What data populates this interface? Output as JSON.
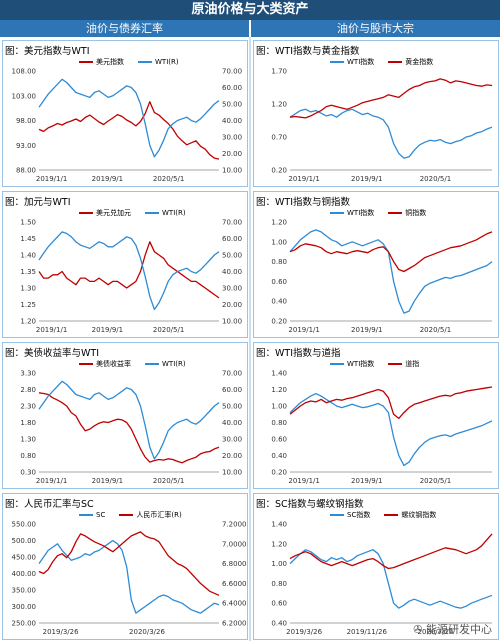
{
  "header": {
    "title": "原油价格与大类资产",
    "left_column": "油价与债券汇率",
    "right_column": "油价与股市大宗"
  },
  "watermark": "能源研发中心",
  "colors": {
    "red": "#c00000",
    "blue": "#2e8bd6"
  },
  "chart_data": [
    {
      "type": "line",
      "title": "图：美元指数与WTI",
      "x_ticks": [
        "2019/1/1",
        "2019/9/1",
        "2020/5/1"
      ],
      "left_axis": {
        "ticks": [
          "108.00",
          "103.00",
          "98.00",
          "93.00",
          "88.00"
        ],
        "range": [
          88,
          108
        ]
      },
      "right_axis": {
        "ticks": [
          "70.00",
          "60.00",
          "50.00",
          "40.00",
          "30.00",
          "20.00",
          "10.00"
        ],
        "range": [
          10,
          70
        ]
      },
      "series": [
        {
          "name": "美元指数",
          "axis": "left",
          "color": "#c00000",
          "values": [
            96.2,
            95.8,
            96.5,
            96.9,
            97.4,
            97.1,
            97.6,
            97.9,
            98.3,
            97.8,
            98.6,
            99.1,
            98.4,
            97.7,
            97.2,
            97.9,
            98.5,
            99.2,
            98.8,
            98.1,
            97.6,
            96.9,
            97.8,
            99.4,
            101.8,
            99.6,
            99.1,
            98.2,
            97.4,
            96.3,
            94.8,
            93.9,
            93.1,
            93.5,
            93.9,
            92.8,
            92.2,
            91.1,
            90.4,
            90.2
          ]
        },
        {
          "name": "WTI(R)",
          "axis": "right",
          "color": "#2e8bd6",
          "values": [
            48,
            52,
            56,
            59,
            62,
            65,
            63,
            60,
            57,
            56,
            55,
            54,
            57,
            58,
            56,
            54,
            55,
            57,
            59,
            61,
            60,
            57,
            50,
            38,
            25,
            18,
            22,
            28,
            35,
            38,
            40,
            41,
            42,
            40,
            39,
            41,
            44,
            47,
            50,
            52
          ]
        }
      ]
    },
    {
      "type": "line",
      "title": "图：加元与WTI",
      "x_ticks": [
        "2019/1/1",
        "2019/9/1",
        "2020/5/1"
      ],
      "left_axis": {
        "ticks": [
          "1.50",
          "1.45",
          "1.40",
          "1.35",
          "1.30",
          "1.25",
          "1.20"
        ],
        "range": [
          1.2,
          1.5
        ]
      },
      "right_axis": {
        "ticks": [
          "70.00",
          "60.00",
          "50.00",
          "40.00",
          "30.00",
          "20.00",
          "10.00"
        ],
        "range": [
          10,
          70
        ]
      },
      "series": [
        {
          "name": "美元兑加元",
          "axis": "left",
          "color": "#c00000",
          "values": [
            1.35,
            1.33,
            1.33,
            1.34,
            1.34,
            1.35,
            1.33,
            1.32,
            1.31,
            1.33,
            1.33,
            1.32,
            1.32,
            1.33,
            1.32,
            1.31,
            1.32,
            1.32,
            1.31,
            1.3,
            1.31,
            1.32,
            1.35,
            1.4,
            1.44,
            1.41,
            1.4,
            1.39,
            1.37,
            1.36,
            1.35,
            1.34,
            1.33,
            1.32,
            1.32,
            1.31,
            1.3,
            1.29,
            1.28,
            1.27
          ]
        },
        {
          "name": "WTI(R)",
          "axis": "right",
          "color": "#2e8bd6",
          "values": [
            47,
            51,
            55,
            58,
            61,
            64,
            63,
            61,
            58,
            56,
            55,
            54,
            56,
            58,
            57,
            55,
            55,
            57,
            59,
            61,
            60,
            56,
            48,
            37,
            25,
            17,
            21,
            27,
            34,
            38,
            40,
            41,
            42,
            40,
            39,
            41,
            44,
            47,
            50,
            52
          ]
        }
      ]
    },
    {
      "type": "line",
      "title": "图：美债收益率与WTI",
      "x_ticks": [
        "2019/1/1",
        "2019/9/1",
        "2020/5/1"
      ],
      "left_axis": {
        "ticks": [
          "3.30",
          "2.80",
          "2.30",
          "1.80",
          "1.30",
          "0.80",
          "0.30"
        ],
        "range": [
          0.3,
          3.3
        ]
      },
      "right_axis": {
        "ticks": [
          "70.00",
          "60.00",
          "50.00",
          "40.00",
          "30.00",
          "20.00",
          "10.00"
        ],
        "range": [
          10,
          70
        ]
      },
      "series": [
        {
          "name": "美债收益率",
          "axis": "left",
          "color": "#c00000",
          "values": [
            2.7,
            2.68,
            2.65,
            2.55,
            2.48,
            2.4,
            2.3,
            2.1,
            2.0,
            1.75,
            1.55,
            1.6,
            1.7,
            1.78,
            1.82,
            1.8,
            1.85,
            1.9,
            1.88,
            1.8,
            1.6,
            1.3,
            1.0,
            0.75,
            0.6,
            0.65,
            0.68,
            0.66,
            0.7,
            0.68,
            0.62,
            0.58,
            0.65,
            0.7,
            0.75,
            0.85,
            0.9,
            0.92,
            1.0,
            1.05
          ]
        },
        {
          "name": "WTI(R)",
          "axis": "right",
          "color": "#2e8bd6",
          "values": [
            48,
            52,
            56,
            59,
            62,
            65,
            63,
            60,
            57,
            56,
            55,
            54,
            57,
            58,
            56,
            54,
            55,
            57,
            59,
            61,
            60,
            57,
            50,
            38,
            25,
            18,
            22,
            28,
            35,
            38,
            40,
            41,
            42,
            40,
            39,
            41,
            44,
            47,
            50,
            52
          ]
        }
      ]
    },
    {
      "type": "line",
      "title": "图：人民币汇率与SC",
      "x_ticks": [
        "2019/3/26",
        "2020/3/26"
      ],
      "left_axis": {
        "ticks": [
          "550.00",
          "500.00",
          "450.00",
          "400.00",
          "350.00",
          "300.00",
          "250.00"
        ],
        "range": [
          250,
          550
        ]
      },
      "right_axis": {
        "ticks": [
          "7.2000",
          "7.0000",
          "6.8000",
          "6.6000",
          "6.4000",
          "6.2000"
        ],
        "range": [
          6.2,
          7.2
        ]
      },
      "series": [
        {
          "name": "SC",
          "axis": "left",
          "color": "#2e8bd6",
          "values": [
            430,
            450,
            470,
            480,
            490,
            470,
            455,
            440,
            445,
            450,
            460,
            455,
            465,
            470,
            480,
            490,
            500,
            490,
            470,
            420,
            320,
            280,
            290,
            300,
            310,
            320,
            330,
            335,
            330,
            320,
            315,
            310,
            300,
            290,
            285,
            280,
            290,
            300,
            310,
            305
          ]
        },
        {
          "name": "人民币汇率(R)",
          "axis": "right",
          "color": "#c00000",
          "values": [
            6.72,
            6.7,
            6.74,
            6.82,
            6.88,
            6.9,
            6.86,
            6.92,
            7.02,
            7.1,
            7.08,
            7.05,
            7.02,
            7.0,
            6.98,
            6.95,
            6.92,
            6.96,
            7.0,
            7.04,
            7.08,
            7.1,
            7.12,
            7.08,
            7.06,
            7.05,
            7.02,
            6.95,
            6.88,
            6.84,
            6.8,
            6.78,
            6.75,
            6.7,
            6.65,
            6.6,
            6.56,
            6.52,
            6.5,
            6.48
          ]
        }
      ]
    },
    {
      "type": "line",
      "title": "图：WTI指数与黄金指数",
      "x_ticks": [
        "2019/1/1",
        "2019/9/1",
        "2020/5/1"
      ],
      "left_axis": {
        "ticks": [
          "1.70",
          "1.20",
          "0.70",
          "0.20"
        ],
        "range": [
          0.2,
          1.7
        ]
      },
      "series": [
        {
          "name": "WTI指数",
          "axis": "left",
          "color": "#2e8bd6",
          "values": [
            1.0,
            1.05,
            1.1,
            1.12,
            1.08,
            1.1,
            1.06,
            1.02,
            1.04,
            1.0,
            1.06,
            1.1,
            1.12,
            1.08,
            1.04,
            1.06,
            1.02,
            1.0,
            0.96,
            0.85,
            0.6,
            0.45,
            0.38,
            0.4,
            0.5,
            0.58,
            0.62,
            0.65,
            0.64,
            0.66,
            0.62,
            0.6,
            0.63,
            0.65,
            0.7,
            0.72,
            0.76,
            0.78,
            0.82,
            0.85
          ]
        },
        {
          "name": "黄金指数",
          "axis": "left",
          "color": "#c00000",
          "values": [
            1.0,
            1.01,
            1.0,
            0.99,
            1.02,
            1.06,
            1.1,
            1.16,
            1.18,
            1.16,
            1.14,
            1.12,
            1.15,
            1.18,
            1.22,
            1.24,
            1.26,
            1.28,
            1.3,
            1.34,
            1.32,
            1.3,
            1.36,
            1.42,
            1.46,
            1.48,
            1.52,
            1.54,
            1.55,
            1.58,
            1.56,
            1.52,
            1.55,
            1.54,
            1.52,
            1.5,
            1.48,
            1.47,
            1.49,
            1.48
          ]
        }
      ]
    },
    {
      "type": "line",
      "title": "图：WTI指数与铜指数",
      "x_ticks": [
        "2019/1/1",
        "2019/9/1",
        "2020/5/1"
      ],
      "left_axis": {
        "ticks": [
          "1.20",
          "1.00",
          "0.80",
          "0.60",
          "0.40",
          "0.20"
        ],
        "range": [
          0.2,
          1.2
        ]
      },
      "series": [
        {
          "name": "WTI指数",
          "axis": "left",
          "color": "#2e8bd6",
          "values": [
            0.9,
            0.96,
            1.02,
            1.06,
            1.1,
            1.12,
            1.1,
            1.06,
            1.02,
            1.0,
            0.96,
            0.98,
            1.0,
            0.98,
            0.96,
            0.98,
            1.0,
            1.02,
            0.98,
            0.9,
            0.6,
            0.4,
            0.28,
            0.3,
            0.4,
            0.48,
            0.55,
            0.58,
            0.6,
            0.62,
            0.64,
            0.63,
            0.65,
            0.66,
            0.68,
            0.7,
            0.72,
            0.74,
            0.76,
            0.8
          ]
        },
        {
          "name": "铜指数",
          "axis": "left",
          "color": "#c00000",
          "values": [
            0.9,
            0.92,
            0.96,
            0.98,
            0.97,
            0.96,
            0.94,
            0.9,
            0.88,
            0.9,
            0.89,
            0.88,
            0.9,
            0.91,
            0.9,
            0.89,
            0.92,
            0.94,
            0.95,
            0.9,
            0.8,
            0.72,
            0.7,
            0.73,
            0.76,
            0.8,
            0.84,
            0.86,
            0.88,
            0.9,
            0.92,
            0.94,
            0.95,
            0.96,
            0.98,
            1.0,
            1.02,
            1.05,
            1.08,
            1.1
          ]
        }
      ]
    },
    {
      "type": "line",
      "title": "图：WTI指数与道指",
      "x_ticks": [
        "2019/1/1",
        "2019/9/1",
        "2020/5/1"
      ],
      "left_axis": {
        "ticks": [
          "1.40",
          "1.20",
          "1.00",
          "0.80",
          "0.60",
          "0.40",
          "0.20"
        ],
        "range": [
          0.2,
          1.4
        ]
      },
      "series": [
        {
          "name": "WTI指数",
          "axis": "left",
          "color": "#2e8bd6",
          "values": [
            0.92,
            0.98,
            1.04,
            1.08,
            1.12,
            1.15,
            1.12,
            1.08,
            1.04,
            1.0,
            0.98,
            1.0,
            1.02,
            1.0,
            0.98,
            0.99,
            1.01,
            1.03,
            1.0,
            0.92,
            0.62,
            0.4,
            0.28,
            0.32,
            0.42,
            0.5,
            0.56,
            0.6,
            0.62,
            0.64,
            0.65,
            0.63,
            0.66,
            0.68,
            0.7,
            0.72,
            0.74,
            0.76,
            0.79,
            0.82
          ]
        },
        {
          "name": "道指",
          "axis": "left",
          "color": "#c00000",
          "values": [
            0.9,
            0.95,
            1.0,
            1.04,
            1.06,
            1.05,
            1.08,
            1.04,
            1.06,
            1.08,
            1.07,
            1.09,
            1.1,
            1.12,
            1.14,
            1.16,
            1.18,
            1.2,
            1.18,
            1.1,
            0.9,
            0.85,
            0.92,
            0.98,
            1.02,
            1.04,
            1.06,
            1.08,
            1.1,
            1.12,
            1.13,
            1.12,
            1.15,
            1.16,
            1.18,
            1.19,
            1.2,
            1.21,
            1.22,
            1.23
          ]
        }
      ]
    },
    {
      "type": "line",
      "title": "图：SC指数与螺纹钢指数",
      "x_ticks": [
        "2019/3/26",
        "2019/11/26",
        "2020/7/26"
      ],
      "left_axis": {
        "ticks": [
          "1.40",
          "1.20",
          "1.00",
          "0.80",
          "0.60",
          "0.40"
        ],
        "range": [
          0.4,
          1.4
        ]
      },
      "series": [
        {
          "name": "SC指数",
          "axis": "left",
          "color": "#2e8bd6",
          "values": [
            1.0,
            1.05,
            1.1,
            1.14,
            1.12,
            1.08,
            1.04,
            1.02,
            1.06,
            1.04,
            1.06,
            1.02,
            1.04,
            1.08,
            1.1,
            1.12,
            1.14,
            1.1,
            1.0,
            0.8,
            0.6,
            0.55,
            0.58,
            0.62,
            0.64,
            0.62,
            0.6,
            0.58,
            0.6,
            0.62,
            0.6,
            0.58,
            0.56,
            0.55,
            0.57,
            0.6,
            0.62,
            0.64,
            0.66,
            0.68
          ]
        },
        {
          "name": "螺纹钢指数",
          "axis": "left",
          "color": "#c00000",
          "values": [
            1.05,
            1.08,
            1.1,
            1.12,
            1.1,
            1.06,
            1.02,
            1.0,
            0.98,
            1.0,
            1.02,
            1.0,
            0.98,
            1.0,
            1.02,
            1.04,
            1.05,
            1.02,
            0.98,
            0.95,
            0.96,
            0.98,
            1.0,
            1.02,
            1.04,
            1.06,
            1.08,
            1.1,
            1.12,
            1.14,
            1.16,
            1.15,
            1.14,
            1.12,
            1.1,
            1.12,
            1.14,
            1.18,
            1.24,
            1.3
          ]
        }
      ]
    }
  ]
}
